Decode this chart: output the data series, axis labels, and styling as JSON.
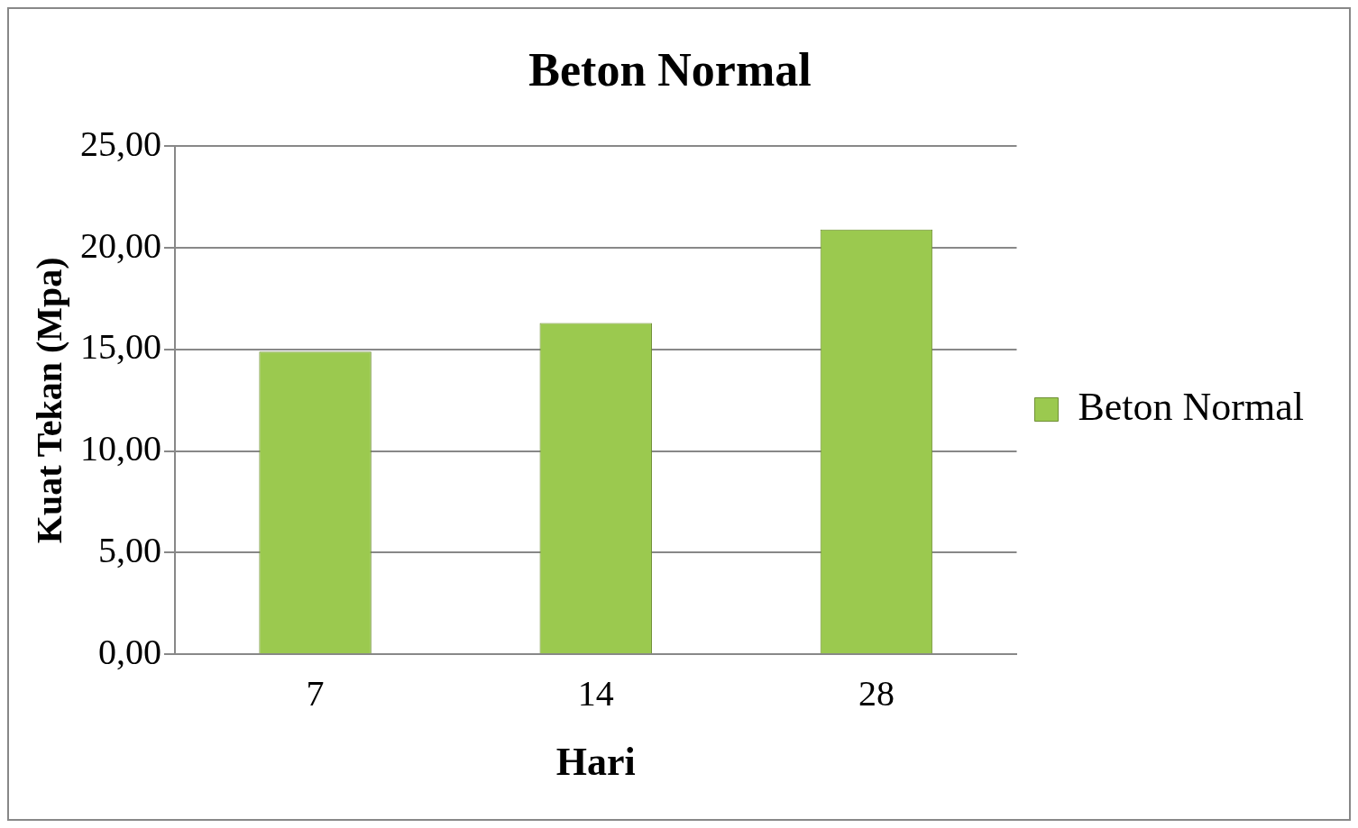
{
  "chart_data": {
    "type": "bar",
    "title": "Beton Normal",
    "xlabel": "Hari",
    "ylabel": "Kuat Tekan (Mpa)",
    "categories": [
      "7",
      "14",
      "28"
    ],
    "series": [
      {
        "name": "Beton Normal",
        "color": "#9bc94f",
        "values": [
          14.9,
          16.3,
          20.9
        ]
      }
    ],
    "ylim": [
      0,
      25
    ],
    "yticks": [
      {
        "value": 0,
        "label": "0,00"
      },
      {
        "value": 5,
        "label": "5,00"
      },
      {
        "value": 10,
        "label": "10,00"
      },
      {
        "value": 15,
        "label": "15,00"
      },
      {
        "value": 20,
        "label": "20,00"
      },
      {
        "value": 25,
        "label": "25,00"
      }
    ],
    "grid": "y",
    "legend": "right"
  }
}
